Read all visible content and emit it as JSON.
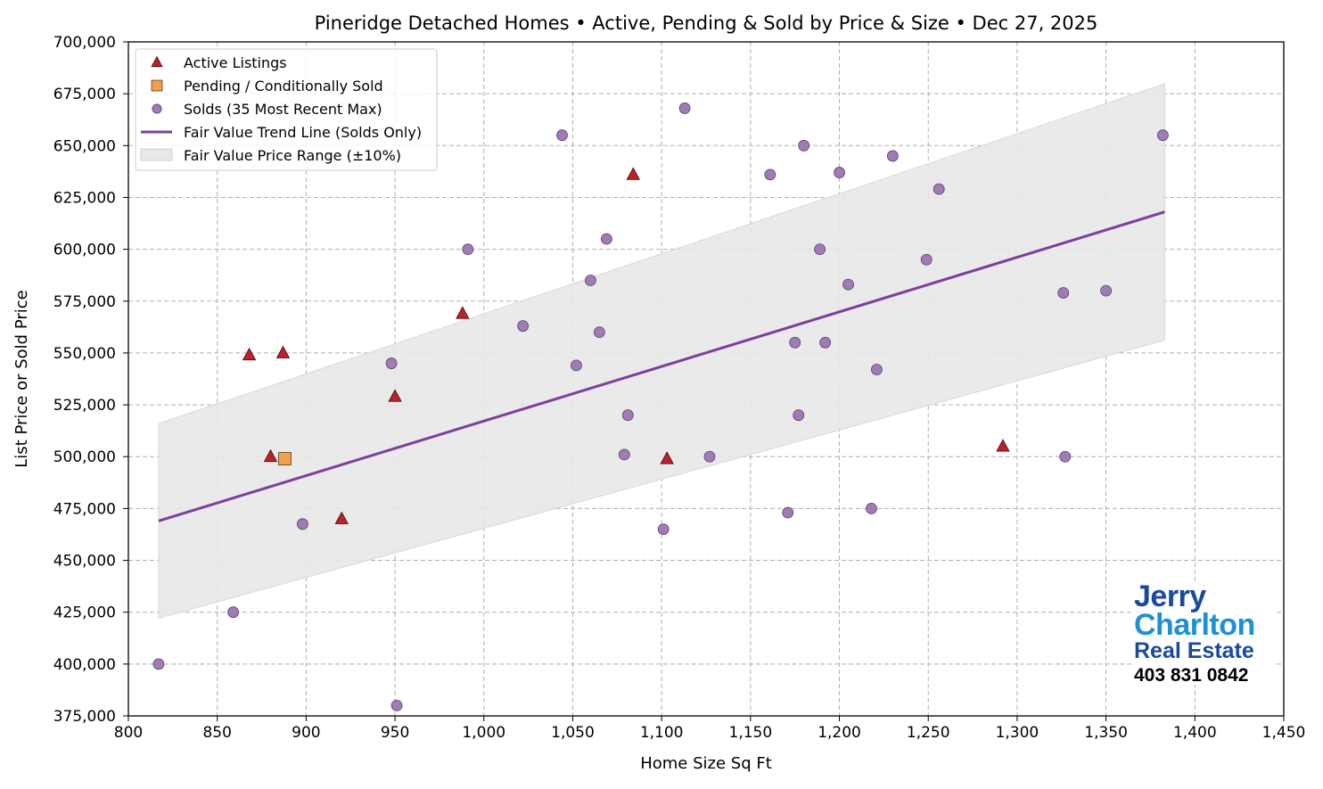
{
  "chart_data": {
    "type": "scatter",
    "title": "Pineridge Detached Homes • Active, Pending & Sold by Price & Size • Dec 27, 2025",
    "xlabel": "Home Size Sq Ft",
    "ylabel": "List Price or Sold Price",
    "xlim": [
      800,
      1450
    ],
    "ylim": [
      375000,
      700000
    ],
    "xticks": [
      800,
      850,
      900,
      950,
      1000,
      1050,
      1100,
      1150,
      1200,
      1250,
      1300,
      1350,
      1400,
      1450
    ],
    "xtick_labels": [
      "800",
      "850",
      "900",
      "950",
      "1,000",
      "1,050",
      "1,100",
      "1,150",
      "1,200",
      "1,250",
      "1,300",
      "1,350",
      "1,400",
      "1,450"
    ],
    "yticks": [
      375000,
      400000,
      425000,
      450000,
      475000,
      500000,
      525000,
      550000,
      575000,
      600000,
      625000,
      650000,
      675000,
      700000
    ],
    "ytick_labels": [
      "375,000",
      "400,000",
      "425,000",
      "450,000",
      "475,000",
      "500,000",
      "525,000",
      "550,000",
      "575,000",
      "600,000",
      "625,000",
      "650,000",
      "675,000",
      "700,000"
    ],
    "grid": true,
    "legend_position": "top-left",
    "series": [
      {
        "name": "Active Listings",
        "marker": "triangle",
        "color": "#c0202a",
        "points": [
          [
            868,
            549000
          ],
          [
            887,
            550000
          ],
          [
            880,
            500000
          ],
          [
            920,
            470000
          ],
          [
            950,
            529000
          ],
          [
            988,
            569000
          ],
          [
            1084,
            636000
          ],
          [
            1103,
            499000
          ],
          [
            1292,
            505000
          ]
        ]
      },
      {
        "name": "Pending / Conditionally Sold",
        "marker": "square",
        "color": "#f0a050",
        "points": [
          [
            888,
            499000
          ]
        ]
      },
      {
        "name": "Solds (35 Most Recent Max)",
        "marker": "circle",
        "color": "#a07cb4",
        "points": [
          [
            817,
            400000
          ],
          [
            859,
            425000
          ],
          [
            898,
            467500
          ],
          [
            948,
            545000
          ],
          [
            951,
            380000
          ],
          [
            991,
            600000
          ],
          [
            1022,
            563000
          ],
          [
            1044,
            655000
          ],
          [
            1052,
            544000
          ],
          [
            1060,
            585000
          ],
          [
            1065,
            560000
          ],
          [
            1069,
            605000
          ],
          [
            1079,
            501000
          ],
          [
            1081,
            520000
          ],
          [
            1101,
            465000
          ],
          [
            1113,
            668000
          ],
          [
            1127,
            500000
          ],
          [
            1161,
            636000
          ],
          [
            1171,
            473000
          ],
          [
            1175,
            555000
          ],
          [
            1177,
            520000
          ],
          [
            1180,
            650000
          ],
          [
            1189,
            600000
          ],
          [
            1192,
            555000
          ],
          [
            1200,
            637000
          ],
          [
            1205,
            583000
          ],
          [
            1218,
            475000
          ],
          [
            1221,
            542000
          ],
          [
            1230,
            645000
          ],
          [
            1249,
            595000
          ],
          [
            1256,
            629000
          ],
          [
            1326,
            579000
          ],
          [
            1327,
            500000
          ],
          [
            1350,
            580000
          ],
          [
            1382,
            655000
          ]
        ]
      },
      {
        "name": "Fair Value Trend Line (Solds Only)",
        "type": "line",
        "color": "#7b3f9e",
        "points": [
          [
            817,
            469000
          ],
          [
            1383,
            618000
          ]
        ]
      },
      {
        "name": "Fair Value Price Range (±10%)",
        "type": "band",
        "color": "#e8e8e8",
        "band_pct": 10
      }
    ]
  },
  "logo": {
    "line1": "Jerry",
    "line2": "Charlton",
    "line3": "Real Estate",
    "phone": "403 831 0842"
  }
}
